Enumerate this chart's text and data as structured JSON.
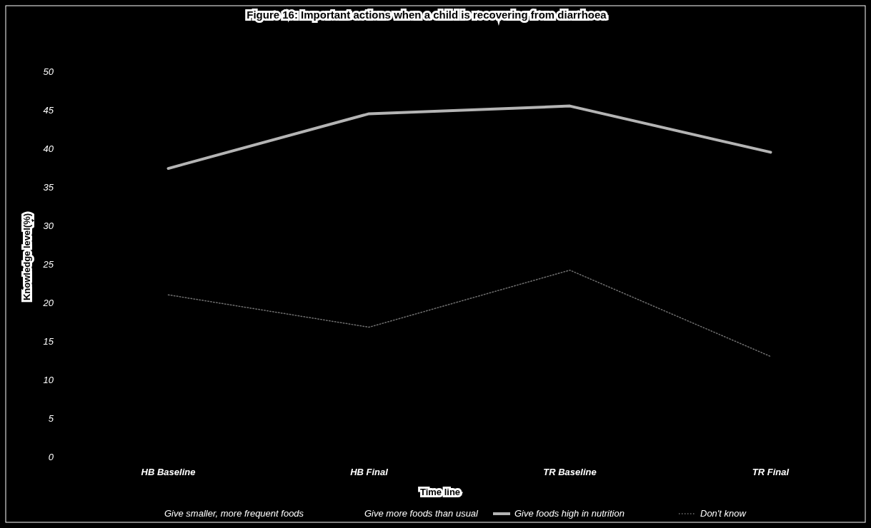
{
  "chart_data": {
    "type": "line",
    "title": "Figure 16: Important actions when a child is recovering from diarrhoea",
    "xlabel": "Time line",
    "ylabel": "Knowledge level(%)",
    "categories": [
      "HB Baseline",
      "HB Final",
      "TR Baseline",
      "TR Final"
    ],
    "series": [
      {
        "name": "Give smaller, more frequent foods",
        "values": [
          null,
          null,
          null,
          null
        ]
      },
      {
        "name": "Give more foods than usual",
        "values": [
          null,
          null,
          null,
          null
        ]
      },
      {
        "name": "Give foods high in nutrition",
        "color": "#b4b4b4",
        "values": [
          37.4,
          44.5,
          45.5,
          39.5
        ]
      },
      {
        "name": "Don't know",
        "color": "#707070",
        "values": [
          21.0,
          16.8,
          24.2,
          13.0
        ],
        "line_style": "dotted"
      }
    ],
    "ylim": [
      0,
      50
    ],
    "yticks": [
      0,
      5,
      10,
      15,
      20,
      25,
      30,
      35,
      40,
      45,
      50
    ],
    "legend": "bottom",
    "grid": false,
    "marker": "none"
  }
}
